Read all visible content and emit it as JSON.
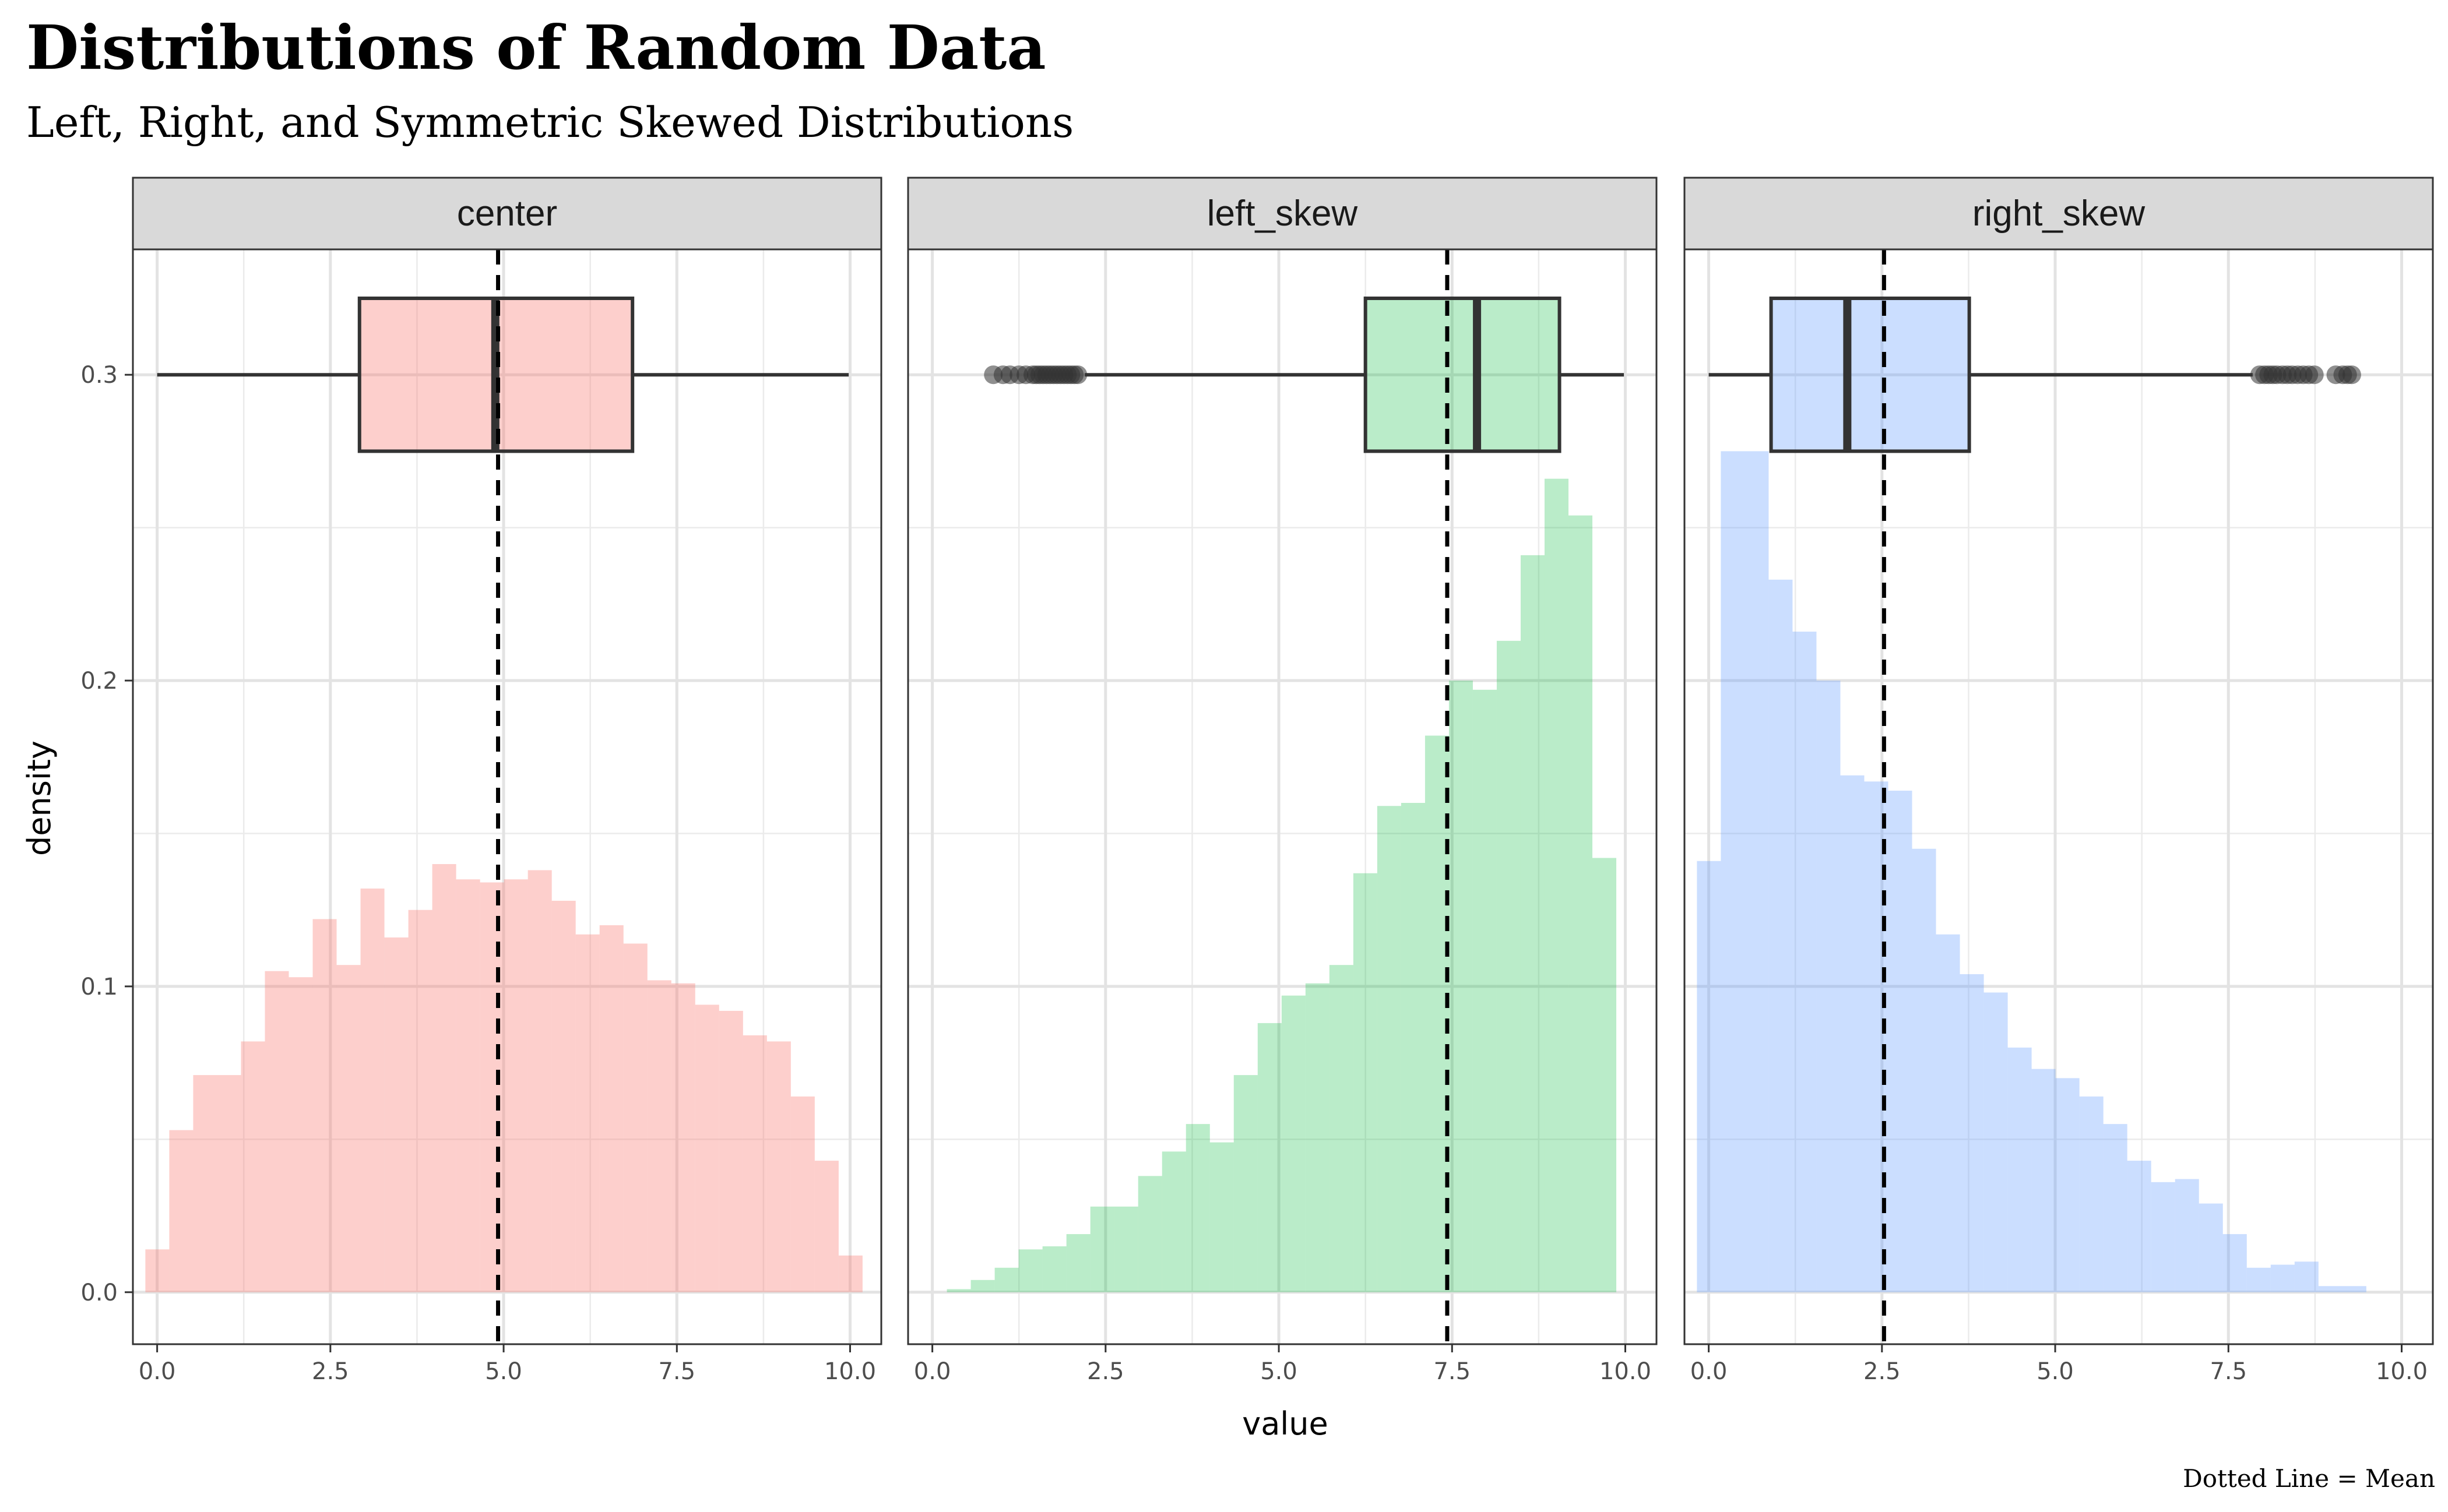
{
  "title": "Distributions of Random Data",
  "subtitle": "Left, Right, and Symmetric Skewed Distributions",
  "caption": "Dotted Line = Mean",
  "chart_data": {
    "type": "histogram",
    "xlabel": "value",
    "ylabel": "density",
    "xlim": [
      -0.35,
      10.45
    ],
    "ylim": [
      -0.017,
      0.341
    ],
    "x_ticks": [
      "0.0",
      "2.5",
      "5.0",
      "7.5",
      "10.0"
    ],
    "y_ticks": [
      "0.0",
      "0.1",
      "0.2",
      "0.3"
    ],
    "grid": true,
    "boxplot_y": 0.3,
    "boxplot_half_height": 0.025,
    "facets": [
      {
        "label": "center",
        "fill": "#F8766D",
        "fill_opacity": 0.35,
        "bin_start": -0.17,
        "bin_width": 0.345,
        "densities": [
          0.014,
          0.053,
          0.071,
          0.071,
          0.082,
          0.105,
          0.103,
          0.122,
          0.107,
          0.132,
          0.116,
          0.125,
          0.14,
          0.135,
          0.134,
          0.135,
          0.138,
          0.128,
          0.117,
          0.12,
          0.114,
          0.102,
          0.101,
          0.094,
          0.092,
          0.084,
          0.082,
          0.064,
          0.043,
          0.012
        ],
        "mean": 4.92,
        "boxplot": {
          "whisker_low": 0.0,
          "q1": 2.92,
          "median": 4.88,
          "q3": 6.86,
          "whisker_high": 9.98,
          "outliers": []
        }
      },
      {
        "label": "left_skew",
        "fill": "#00BA38",
        "fill_opacity": 0.27,
        "bin_start": 0.21,
        "bin_width": 0.345,
        "densities": [
          0.001,
          0.004,
          0.008,
          0.014,
          0.015,
          0.019,
          0.028,
          0.028,
          0.038,
          0.046,
          0.055,
          0.049,
          0.071,
          0.088,
          0.097,
          0.101,
          0.107,
          0.137,
          0.159,
          0.16,
          0.182,
          0.2,
          0.197,
          0.213,
          0.241,
          0.266,
          0.254,
          0.142
        ],
        "mean": 7.43,
        "boxplot": {
          "whisker_low": 2.2,
          "q1": 6.25,
          "median": 7.86,
          "q3": 9.05,
          "whisker_high": 9.98,
          "outliers": [
            0.88,
            1.02,
            1.12,
            1.25,
            1.35,
            1.45,
            1.5,
            1.55,
            1.6,
            1.65,
            1.7,
            1.75,
            1.8,
            1.85,
            1.9,
            1.95,
            2.0,
            2.05,
            2.1
          ]
        }
      },
      {
        "label": "right_skew",
        "fill": "#619CFF",
        "fill_opacity": 0.33,
        "bin_start": -0.17,
        "bin_width": 0.345,
        "densities": [
          0.141,
          0.275,
          0.275,
          0.233,
          0.216,
          0.2,
          0.169,
          0.167,
          0.164,
          0.145,
          0.117,
          0.104,
          0.098,
          0.08,
          0.073,
          0.07,
          0.064,
          0.055,
          0.043,
          0.036,
          0.037,
          0.029,
          0.019,
          0.008,
          0.009,
          0.01,
          0.002,
          0.002
        ],
        "mean": 2.53,
        "boxplot": {
          "whisker_low": 0.0,
          "q1": 0.9,
          "median": 2.0,
          "q3": 3.76,
          "whisker_high": 7.85,
          "outliers": [
            7.95,
            8.02,
            8.08,
            8.14,
            8.2,
            8.28,
            8.35,
            8.42,
            8.5,
            8.58,
            8.66,
            8.74,
            9.05,
            9.15,
            9.22,
            9.28
          ]
        }
      }
    ]
  }
}
